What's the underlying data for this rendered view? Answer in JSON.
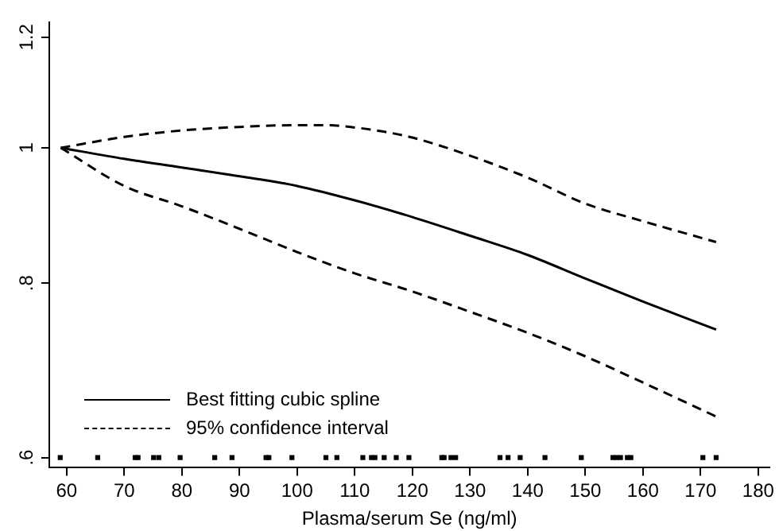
{
  "chart_data": {
    "type": "line",
    "xlabel": "Plasma/serum Se (ng/ml)",
    "log": "y",
    "legend": "bottom left",
    "line_style": "solid",
    "xlim": [
      57,
      182
    ],
    "xticks": [
      60,
      70,
      80,
      90,
      100,
      110,
      120,
      130,
      140,
      150,
      160,
      170,
      180
    ],
    "ylim": [
      0.59,
      1.23
    ],
    "yticks": [
      {
        "value": 0.6,
        "label": ".6"
      },
      {
        "value": 0.8,
        "label": ".8"
      },
      {
        "value": 1,
        "label": "1"
      },
      {
        "value": 1.2,
        "label": "1.2"
      }
    ],
    "series": [
      {
        "name": "Best fitting cubic spline",
        "color": "#000000",
        "x": [
          59,
          70,
          80,
          90,
          100,
          110,
          120,
          130,
          140,
          150,
          160,
          172.7
        ],
        "values": [
          1,
          0.982,
          0.968,
          0.954,
          0.939,
          0.917,
          0.892,
          0.865,
          0.838,
          0.806,
          0.776,
          0.741
        ]
      },
      {
        "name": "95% confidence interval",
        "color": "#000000",
        "line_style": "dashed",
        "x": [
          59,
          70,
          80,
          90,
          100,
          105,
          110,
          115,
          120,
          130,
          140,
          150,
          160,
          172.7
        ],
        "values": [
          1,
          1.018,
          1.029,
          1.035,
          1.038,
          1.038,
          1.034,
          1.027,
          1.017,
          0.987,
          0.952,
          0.912,
          0.886,
          0.856
        ]
      },
      {
        "color": "#000000",
        "line_style": "dashed",
        "x": [
          59,
          70,
          80,
          90,
          100,
          110,
          120,
          130,
          140,
          150,
          160,
          172.7
        ],
        "values": [
          1,
          0.939,
          0.908,
          0.875,
          0.842,
          0.813,
          0.789,
          0.763,
          0.737,
          0.709,
          0.679,
          0.642
        ]
      },
      {
        "type": "scatter",
        "marker": "square",
        "color": "#000000",
        "x": [
          58.9,
          65.4,
          71.9,
          72.4,
          75.1,
          76.0,
          79.7,
          85.7,
          88.7,
          94.6,
          95.1,
          99.1,
          105.0,
          106.9,
          111.4,
          112.9,
          113.5,
          115.1,
          117.2,
          119.4,
          125.1,
          125.5,
          126.7,
          127.5,
          135.2,
          136.6,
          138.7,
          143.0,
          149.3,
          154.8,
          155.4,
          156.1,
          157.3,
          157.9,
          170.4,
          172.7
        ],
        "values": [
          0.6,
          0.6,
          0.6,
          0.6,
          0.6,
          0.6,
          0.6,
          0.6,
          0.6,
          0.6,
          0.6,
          0.6,
          0.6,
          0.6,
          0.6,
          0.6,
          0.6,
          0.6,
          0.6,
          0.6,
          0.6,
          0.6,
          0.6,
          0.6,
          0.6,
          0.6,
          0.6,
          0.6,
          0.6,
          0.6,
          0.6,
          0.6,
          0.6,
          0.6,
          0.6,
          0.6
        ]
      }
    ]
  }
}
